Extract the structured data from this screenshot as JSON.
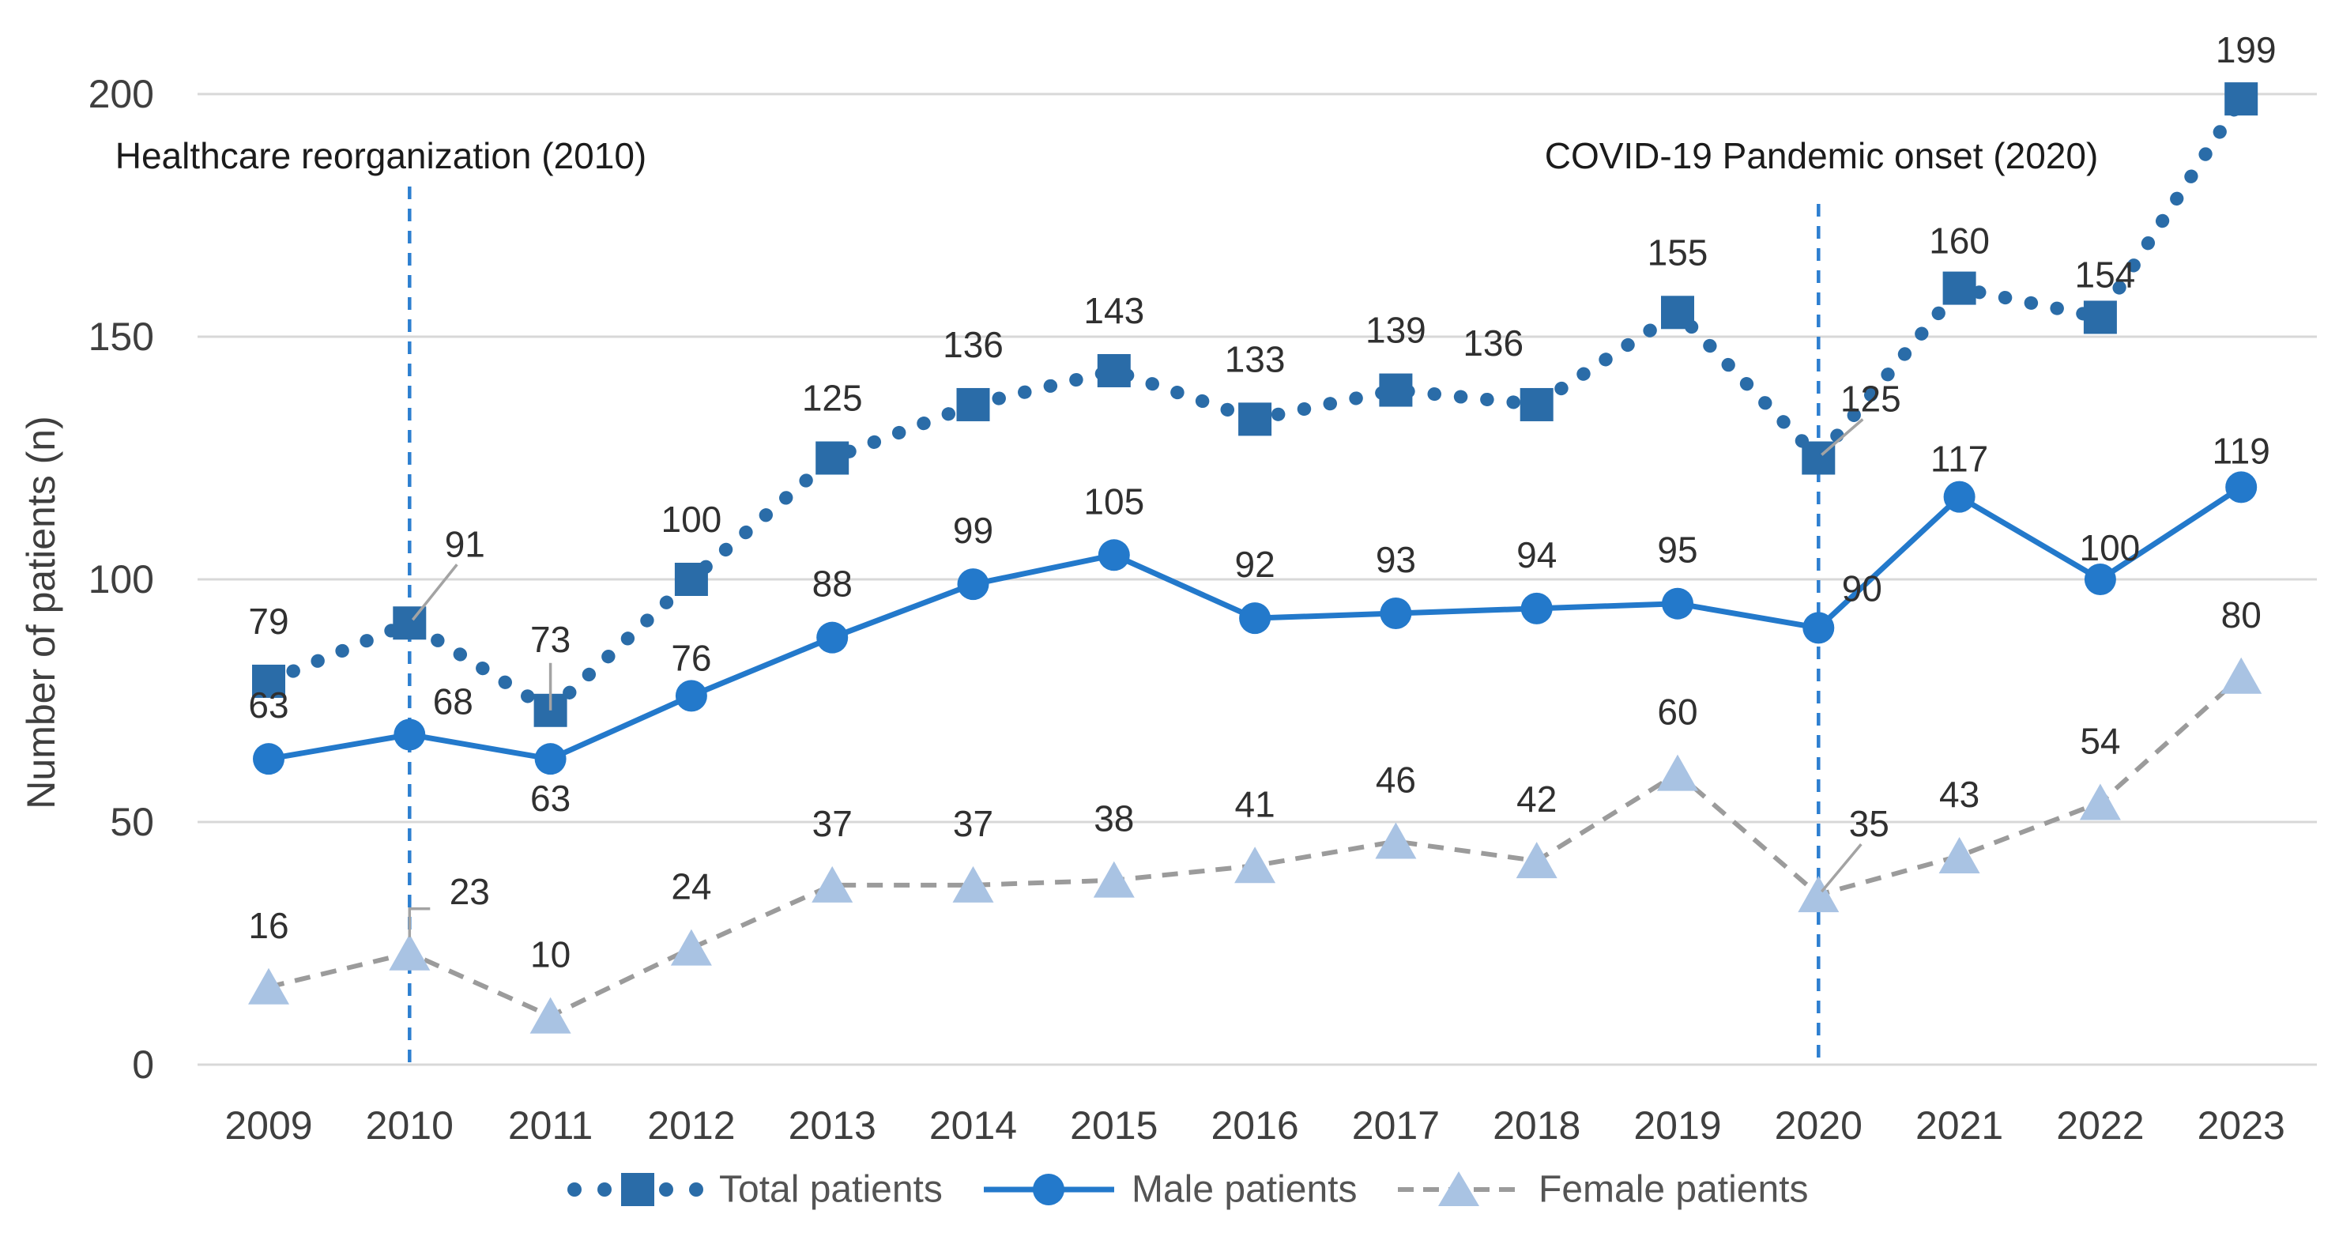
{
  "chart_data": {
    "type": "line",
    "title": "",
    "xlabel": "",
    "ylabel": "Number of patients (n)",
    "x_tick_labels": [
      "2009",
      "2010",
      "2011",
      "2012",
      "2013",
      "2014",
      "2015",
      "2016",
      "2017",
      "2018",
      "2019",
      "2020",
      "2021",
      "2022",
      "2023"
    ],
    "y_ticks": [
      0,
      50,
      100,
      150,
      200
    ],
    "ylim": [
      0,
      200
    ],
    "grid": "horizontal-only",
    "legend_position": "bottom-center",
    "series": [
      {
        "name": "Total patients",
        "marker": "square",
        "line_style": "dotted",
        "color": "#2a6ca8",
        "values": [
          79,
          91,
          73,
          100,
          125,
          136,
          143,
          133,
          139,
          136,
          155,
          125,
          160,
          154,
          199
        ],
        "label_offsets": {
          "1": [
            70,
            -100,
            "diag"
          ],
          "2": [
            0,
            -90,
            "vert"
          ],
          "9": [
            -55,
            -78,
            null
          ],
          "11": [
            66,
            -75,
            "diag"
          ],
          "12": [
            0,
            -60,
            null
          ],
          "13": [
            6,
            -54,
            null
          ],
          "14": [
            6,
            -62,
            null
          ]
        },
        "default_label_dy": -76
      },
      {
        "name": "Male patients",
        "marker": "circle",
        "line_style": "solid",
        "color": "#2379cb",
        "values": [
          63,
          68,
          63,
          76,
          88,
          99,
          105,
          92,
          93,
          94,
          95,
          90,
          117,
          100,
          119
        ],
        "label_offsets": {
          "1": [
            55,
            -42,
            null
          ],
          "2": [
            0,
            50,
            null
          ],
          "3": [
            0,
            -48,
            null
          ],
          "11": [
            55,
            -50,
            null
          ],
          "12": [
            0,
            -48,
            null
          ],
          "13": [
            12,
            -40,
            null
          ],
          "14": [
            0,
            -46,
            null
          ]
        },
        "default_label_dy": -68
      },
      {
        "name": "Female patients",
        "marker": "triangle",
        "line_style": "dashed",
        "color": "#9b9b9b",
        "marker_color": "#a9c3e3",
        "values": [
          16,
          23,
          10,
          24,
          37,
          37,
          38,
          41,
          46,
          42,
          60,
          35,
          43,
          54,
          80
        ],
        "label_offsets": {
          "1": [
            76,
            -78,
            "elbow"
          ],
          "11": [
            64,
            -90,
            "diag"
          ]
        },
        "default_label_dy": -78
      }
    ],
    "annotations": [
      {
        "text": "Healthcare reorganization (2010)",
        "year_label": "2010",
        "year_index": 1
      },
      {
        "text": "COVID-19 Pandemic onset (2020)",
        "year_label": "2020",
        "year_index": 11
      }
    ]
  },
  "colors": {
    "total_series": "#2a6ca8",
    "male_series": "#2379cb",
    "female_line": "#9b9b9b",
    "female_marker": "#a9c3e3",
    "annotation_line": "#2d7fd0",
    "gridline": "#d8d8d8",
    "axis_text": "#3f3f3f",
    "legend_text": "#545454",
    "data_label_text": "#303030",
    "annotation_text": "#1b1b1b",
    "leader_line": "#a3a3a3",
    "background": "#ffffff"
  }
}
